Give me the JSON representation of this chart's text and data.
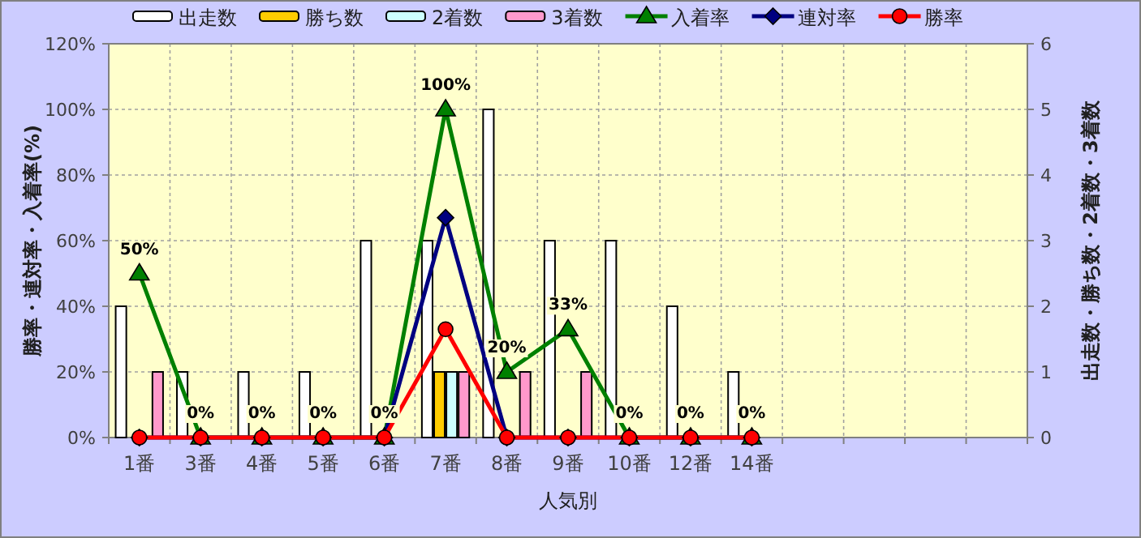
{
  "chart_data": {
    "type": "bar",
    "xlabel": "人気別",
    "ylabel": "勝率・連対率・入着率(%)",
    "y2label": "出走数・勝ち数・2着数・3着数",
    "categories": [
      "1番",
      "3番",
      "4番",
      "5番",
      "6番",
      "7番",
      "8番",
      "9番",
      "10番",
      "12番",
      "14番",
      null,
      null,
      null,
      null
    ],
    "series": [
      {
        "name": "出走数",
        "axis": "y2",
        "color": "#ffffff",
        "values": [
          2,
          1,
          1,
          1,
          3,
          3,
          5,
          3,
          3,
          2,
          1,
          null,
          null,
          null,
          null
        ]
      },
      {
        "name": "勝ち数",
        "axis": "y2",
        "color": "#ffcc00",
        "values": [
          0,
          0,
          0,
          0,
          0,
          1,
          0,
          0,
          0,
          0,
          0,
          null,
          null,
          null,
          null
        ]
      },
      {
        "name": "2着数",
        "axis": "y2",
        "color": "#ccffff",
        "values": [
          0,
          0,
          0,
          0,
          0,
          1,
          0,
          0,
          0,
          0,
          0,
          null,
          null,
          null,
          null
        ]
      },
      {
        "name": "3着数",
        "axis": "y2",
        "color": "#ff99cc",
        "values": [
          1,
          0,
          0,
          0,
          0,
          1,
          1,
          1,
          0,
          0,
          0,
          null,
          null,
          null,
          null
        ]
      },
      {
        "name": "入着率",
        "type": "line",
        "marker": "triangle",
        "color": "#008000",
        "values": [
          50,
          0,
          0,
          0,
          0,
          100,
          20,
          33,
          0,
          0,
          0,
          null,
          null,
          null,
          null
        ],
        "value_labels": [
          "50%",
          "0%",
          "0%",
          "0%",
          "0%",
          "100%",
          "20%",
          "33%",
          "0%",
          "0%",
          "0%",
          null,
          null,
          null,
          null
        ]
      },
      {
        "name": "連対率",
        "type": "line",
        "marker": "diamond",
        "color": "#000080",
        "values": [
          0,
          0,
          0,
          0,
          0,
          67,
          0,
          0,
          0,
          0,
          0,
          null,
          null,
          null,
          null
        ]
      },
      {
        "name": "勝率",
        "type": "line",
        "marker": "circle",
        "color": "#ff0000",
        "values": [
          0,
          0,
          0,
          0,
          0,
          33,
          0,
          0,
          0,
          0,
          0,
          null,
          null,
          null,
          null
        ]
      }
    ],
    "ylim": [
      0,
      120
    ],
    "yticks": [
      {
        "value": 0,
        "label": "0%"
      },
      {
        "value": 20,
        "label": "20%"
      },
      {
        "value": 40,
        "label": "40%"
      },
      {
        "value": 60,
        "label": "60%"
      },
      {
        "value": 80,
        "label": "80%"
      },
      {
        "value": 100,
        "label": "100%"
      },
      {
        "value": 120,
        "label": "120%"
      }
    ],
    "y2lim": [
      0,
      6
    ],
    "y2ticks": [
      0,
      1,
      2,
      3,
      4,
      5,
      6
    ],
    "grid": true,
    "legend": "top"
  }
}
